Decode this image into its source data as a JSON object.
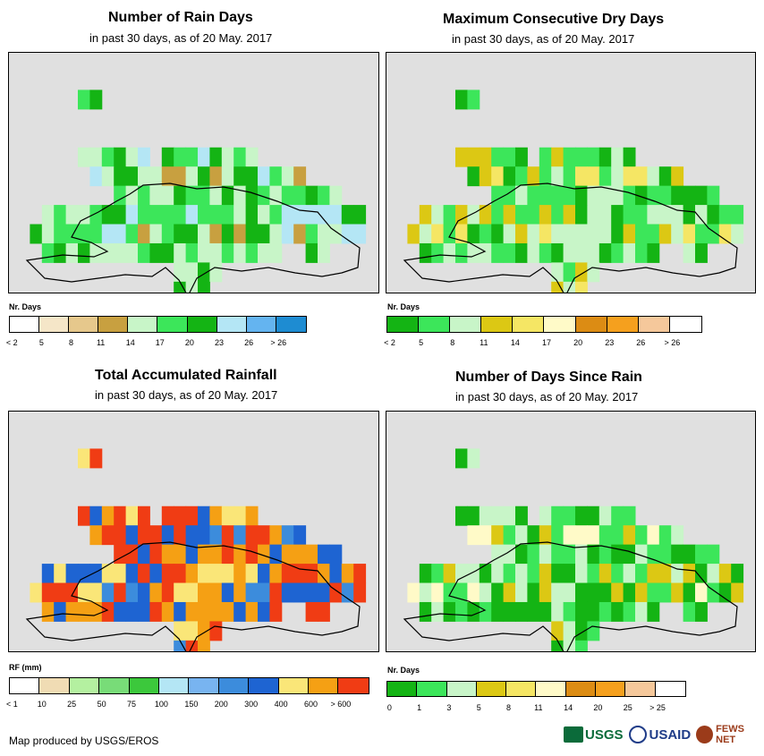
{
  "panels": [
    {
      "id": "rain-days",
      "title": "Number of Rain Days",
      "subtitle": "in past 30 days, as of 20 May. 2017",
      "legend_title": "Nr. Days",
      "legend_colors": [
        "#ffffff",
        "#f5e6c8",
        "#e6c88c",
        "#c8a040",
        "#c8f5c8",
        "#3ce65a",
        "#14b414",
        "#b4e6f5",
        "#64b4f0",
        "#1e8cd2"
      ],
      "legend_labels": [
        "< 2",
        "5",
        "8",
        "11",
        "14",
        "17",
        "20",
        "23",
        "26",
        "> 26"
      ],
      "palette": [
        "#c8f5c8",
        "#3ce65a",
        "#14b414",
        "#b4e6f5",
        "#c8a040",
        "#e6c88c",
        "#f5e6c8"
      ]
    },
    {
      "id": "max-dry-days",
      "title": "Maximum Consecutive Dry Days",
      "subtitle": "in past 30 days, as of 20 May. 2017",
      "legend_title": "Nr. Days",
      "legend_colors": [
        "#14b414",
        "#3ce65a",
        "#c8f5c8",
        "#dcc814",
        "#f5e664",
        "#fffac8",
        "#dc8c14",
        "#f5a01e",
        "#f5c89b",
        "#ffffff"
      ],
      "legend_labels": [
        "< 2",
        "5",
        "8",
        "11",
        "14",
        "17",
        "20",
        "23",
        "26",
        "> 26"
      ],
      "palette": [
        "#c8f5c8",
        "#3ce65a",
        "#14b414",
        "#dcc814",
        "#f5e664",
        "#f5a01e"
      ]
    },
    {
      "id": "total-rainfall",
      "title": "Total Accumulated Rainfall",
      "subtitle": "in past 30 days, as of 20 May. 2017",
      "legend_title": "RF (mm)",
      "legend_colors": [
        "#ffffff",
        "#f0dcb4",
        "#b4f0a0",
        "#78dc78",
        "#3cc83c",
        "#b4e6f5",
        "#78b4f0",
        "#3c8cdc",
        "#1e64d2",
        "#fae678",
        "#f5a014",
        "#f03c14"
      ],
      "legend_labels": [
        "< 1",
        "10",
        "25",
        "50",
        "75",
        "100",
        "150",
        "200",
        "300",
        "400",
        "600",
        "> 600"
      ],
      "palette": [
        "#f5a014",
        "#f03c14",
        "#1e64d2",
        "#fae678",
        "#3c8cdc",
        "#78b4f0"
      ]
    },
    {
      "id": "days-since-rain",
      "title": "Number of Days Since Rain",
      "subtitle": "in past 30 days, as of 20 May. 2017",
      "legend_title": "Nr. Days",
      "legend_colors": [
        "#14b414",
        "#3ce65a",
        "#c8f5c8",
        "#dcc814",
        "#f5e664",
        "#fffac8",
        "#dc8c14",
        "#f5a01e",
        "#f5c89b",
        "#ffffff"
      ],
      "legend_labels": [
        "0",
        "1",
        "3",
        "5",
        "8",
        "11",
        "14",
        "20",
        "25",
        "> 25"
      ],
      "palette": [
        "#14b414",
        "#c8f5c8",
        "#3ce65a",
        "#dcc814",
        "#fffac8"
      ]
    }
  ],
  "credit": "Map produced by USGS/EROS",
  "logos": [
    "USGS",
    "USAID",
    "FEWS NET"
  ]
}
